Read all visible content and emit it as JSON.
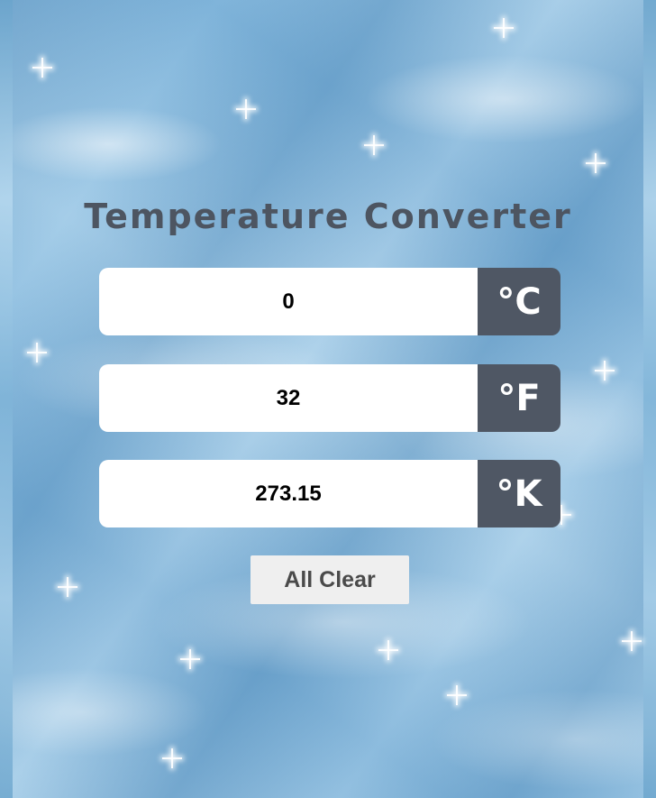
{
  "title": "Temperature Converter",
  "celsius": {
    "value": "0",
    "unit": "°C"
  },
  "fahrenheit": {
    "value": "32",
    "unit": "°F"
  },
  "kelvin": {
    "value": "273.15",
    "unit": "°K"
  },
  "clear_button": {
    "label": "All Clear"
  },
  "colors": {
    "title": "#4d5561",
    "unit_background": "#4f5764",
    "button_background": "#efefef"
  }
}
